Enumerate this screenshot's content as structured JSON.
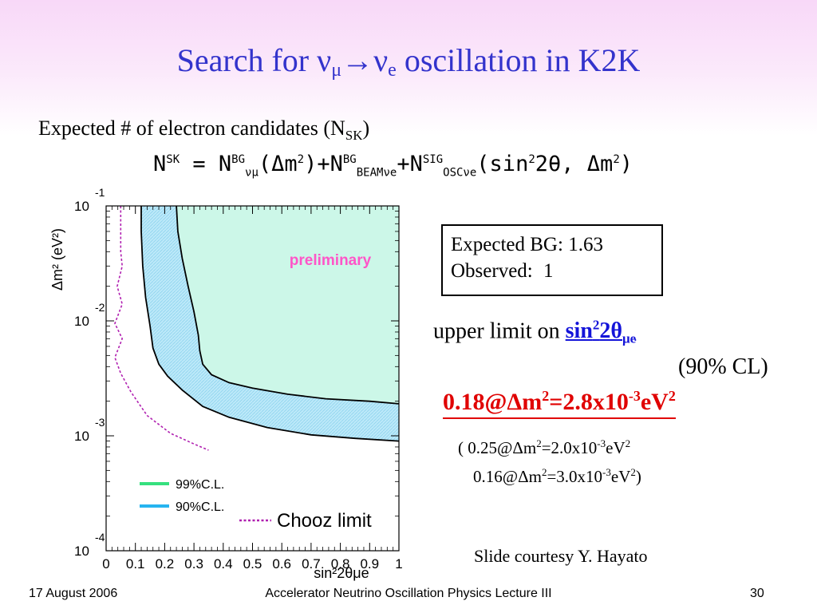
{
  "slide": {
    "title_prefix": "Search for ν",
    "title_sub1": "μ",
    "title_arrow": "→ν",
    "title_sub2": "e",
    "title_suffix": " oscillation in K2K",
    "subtitle_text": "Expected # of electron candidates (N",
    "subtitle_sub": "SK",
    "subtitle_close": ")",
    "equation": {
      "n": "N",
      "sk": "SK",
      "eq": " = N",
      "bg1": "BG",
      "numu": "νμ",
      "dm": "(Δm",
      "two1": "2",
      "close_plus": ")+N",
      "bg2": "BG",
      "beam": "BEAMν",
      "e1": "e",
      "plusn": "+N",
      "sig": "SIG",
      "osc": "OSCν",
      "e2": "e",
      "sin": "(sin",
      "two2": "2",
      "theta": "2θ, Δm",
      "two3": "2",
      "close": ")"
    },
    "bg_box": {
      "expected_label": "Expected BG:",
      "expected_value": "1.63",
      "observed_label": "Observed:",
      "observed_value": "1"
    },
    "upper_limit": {
      "prefix": "upper limit on ",
      "sin": "sin",
      "sup": "2",
      "two_theta": "2θ",
      "sub": "μe",
      "cl": "(90% CL)"
    },
    "result": {
      "main": "0.18@Δm",
      "sup1": "2",
      "mid": "=2.8x10",
      "sup2": "-3",
      "unit": "eV",
      "sup3": "2"
    },
    "alternatives": [
      {
        "open": "( ",
        "val": "0.25@Δm",
        "s1": "2",
        "mid": "=2.0x10",
        "s2": "-3",
        "unit": "eV",
        "s3": "2",
        "close": ""
      },
      {
        "open": "",
        "val": "0.16@Δm",
        "s1": "2",
        "mid": "=3.0x10",
        "s2": "-3",
        "unit": "eV",
        "s3": "2",
        "close": ")"
      }
    ],
    "courtesy": "Slide courtesy Y. Hayato",
    "footer": {
      "date": "17 August 2006",
      "center": "Accelerator Neutrino Oscillation Physics Lecture III",
      "page": "30"
    }
  },
  "chart_data": {
    "type": "area",
    "x_scale": "linear",
    "y_scale": "log",
    "xlim": [
      0,
      1
    ],
    "ylim": [
      0.0001,
      0.1
    ],
    "x_ticks": [
      "0",
      "0.1",
      "0.2",
      "0.3",
      "0.4",
      "0.5",
      "0.6",
      "0.7",
      "0.8",
      "0.9",
      "1"
    ],
    "x_tick_values": [
      0,
      0.1,
      0.2,
      0.3,
      0.4,
      0.5,
      0.6,
      0.7,
      0.8,
      0.9,
      1
    ],
    "y_ticks": [
      {
        "base": "10",
        "exp": "-1",
        "value": 0.1
      },
      {
        "base": "10",
        "exp": "-2",
        "value": 0.01
      },
      {
        "base": "10",
        "exp": "-3",
        "value": 0.001
      },
      {
        "base": "10",
        "exp": "-4",
        "value": 0.0001
      }
    ],
    "xlabel": "sin²2θμe",
    "ylabel": "Δm² (eV²)",
    "annotation": "preliminary",
    "colors": {
      "cl99": "#36e07e",
      "cl90": "#26b4f0",
      "chooz": "#b020b0",
      "fill99": "#ccf7e8",
      "fill90": "#bde9f9",
      "annotation": "#ff55c8"
    },
    "series": [
      {
        "name": "99%C.L.",
        "style": "boundary",
        "points": [
          [
            0.24,
            0.1
          ],
          [
            0.245,
            0.06
          ],
          [
            0.26,
            0.035
          ],
          [
            0.28,
            0.02
          ],
          [
            0.3,
            0.012
          ],
          [
            0.315,
            0.0075
          ],
          [
            0.32,
            0.0055
          ],
          [
            0.33,
            0.0042
          ],
          [
            0.36,
            0.0034
          ],
          [
            0.42,
            0.0029
          ],
          [
            0.5,
            0.0026
          ],
          [
            0.62,
            0.0023
          ],
          [
            0.75,
            0.0021
          ],
          [
            0.9,
            0.002
          ],
          [
            1,
            0.0019
          ]
        ]
      },
      {
        "name": "90%C.L.",
        "style": "boundary",
        "points": [
          [
            0.12,
            0.1
          ],
          [
            0.12,
            0.06
          ],
          [
            0.125,
            0.03
          ],
          [
            0.135,
            0.016
          ],
          [
            0.15,
            0.009
          ],
          [
            0.16,
            0.0058
          ],
          [
            0.18,
            0.0042
          ],
          [
            0.21,
            0.0033
          ],
          [
            0.26,
            0.0025
          ],
          [
            0.33,
            0.0018
          ],
          [
            0.42,
            0.00145
          ],
          [
            0.55,
            0.00118
          ],
          [
            0.7,
            0.00102
          ],
          [
            0.85,
            0.00095
          ],
          [
            1,
            0.0009
          ]
        ]
      },
      {
        "name": "Chooz limit",
        "style": "dashed",
        "points": [
          [
            0.05,
            0.1
          ],
          [
            0.05,
            0.04
          ],
          [
            0.055,
            0.03
          ],
          [
            0.038,
            0.02
          ],
          [
            0.055,
            0.014
          ],
          [
            0.03,
            0.0095
          ],
          [
            0.055,
            0.007
          ],
          [
            0.03,
            0.0048
          ],
          [
            0.05,
            0.0035
          ],
          [
            0.085,
            0.0024
          ],
          [
            0.14,
            0.0015
          ],
          [
            0.22,
            0.00105
          ],
          [
            0.3,
            0.00085
          ],
          [
            0.35,
            0.00075
          ]
        ]
      }
    ],
    "legend": [
      {
        "label": "99%C.L.",
        "color_key": "cl99"
      },
      {
        "label": "90%C.L.",
        "color_key": "cl90"
      },
      {
        "label": "Chooz limit",
        "color_key": "chooz"
      }
    ]
  }
}
